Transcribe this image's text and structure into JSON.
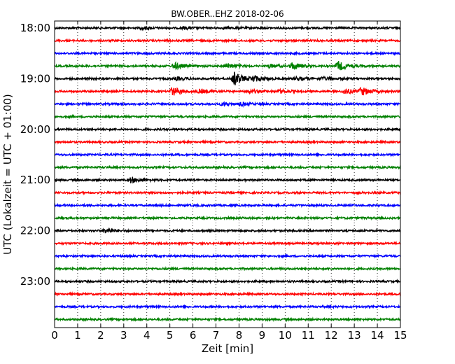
{
  "chart_data": {
    "type": "line",
    "title": "BW.OBER..EHZ 2018-02-06",
    "xlabel": "Zeit  [min]",
    "ylabel": "UTC (Lokalzeit = UTC + 01:00)",
    "xlim": [
      0,
      15
    ],
    "x_ticks": [
      0,
      1,
      2,
      3,
      4,
      5,
      6,
      7,
      8,
      9,
      10,
      11,
      12,
      13,
      14,
      15
    ],
    "x_tick_labels": [
      "0",
      "1",
      "2",
      "3",
      "4",
      "5",
      "6",
      "7",
      "8",
      "9",
      "10",
      "11",
      "12",
      "13",
      "14",
      "15"
    ],
    "y_tick_labels": [
      "18:00",
      "19:00",
      "20:00",
      "21:00",
      "22:00",
      "23:00"
    ],
    "grid": "x-dotted",
    "trace_start_times": [
      "18:00",
      "18:15",
      "18:30",
      "18:45",
      "19:00",
      "19:15",
      "19:30",
      "19:45",
      "20:00",
      "20:15",
      "20:30",
      "20:45",
      "21:00",
      "21:15",
      "21:30",
      "21:45",
      "22:00",
      "22:15",
      "22:30",
      "22:45",
      "23:00",
      "23:15",
      "23:30",
      "23:45"
    ],
    "trace_colors": [
      "#000000",
      "#ff0000",
      "#0000ff",
      "#008000"
    ],
    "events": [
      {
        "trace": 0,
        "minute": 3.8,
        "amplitude": 0.35
      },
      {
        "trace": 0,
        "minute": 5.6,
        "amplitude": 0.3
      },
      {
        "trace": 0,
        "minute": 7.4,
        "amplitude": 0.25
      },
      {
        "trace": 3,
        "minute": 5.2,
        "amplitude": 0.9
      },
      {
        "trace": 3,
        "minute": 7.5,
        "amplitude": 0.6
      },
      {
        "trace": 3,
        "minute": 9.3,
        "amplitude": 0.5
      },
      {
        "trace": 3,
        "minute": 10.3,
        "amplitude": 0.9
      },
      {
        "trace": 3,
        "minute": 12.3,
        "amplitude": 1.3
      },
      {
        "trace": 4,
        "minute": 5.3,
        "amplitude": 0.4
      },
      {
        "trace": 4,
        "minute": 7.8,
        "amplitude": 1.8
      },
      {
        "trace": 4,
        "minute": 8.6,
        "amplitude": 0.8
      },
      {
        "trace": 4,
        "minute": 10.5,
        "amplitude": 0.5
      },
      {
        "trace": 4,
        "minute": 11.6,
        "amplitude": 0.4
      },
      {
        "trace": 5,
        "minute": 5.1,
        "amplitude": 1.2
      },
      {
        "trace": 5,
        "minute": 6.3,
        "amplitude": 0.5
      },
      {
        "trace": 5,
        "minute": 8.4,
        "amplitude": 0.5
      },
      {
        "trace": 5,
        "minute": 9.8,
        "amplitude": 0.4
      },
      {
        "trace": 5,
        "minute": 12.6,
        "amplitude": 0.7
      },
      {
        "trace": 5,
        "minute": 13.3,
        "amplitude": 1.1
      },
      {
        "trace": 6,
        "minute": 7.3,
        "amplitude": 0.4
      },
      {
        "trace": 6,
        "minute": 8.1,
        "amplitude": 0.35
      },
      {
        "trace": 12,
        "minute": 3.3,
        "amplitude": 0.7
      },
      {
        "trace": 16,
        "minute": 2.2,
        "amplitude": 0.6
      }
    ]
  }
}
